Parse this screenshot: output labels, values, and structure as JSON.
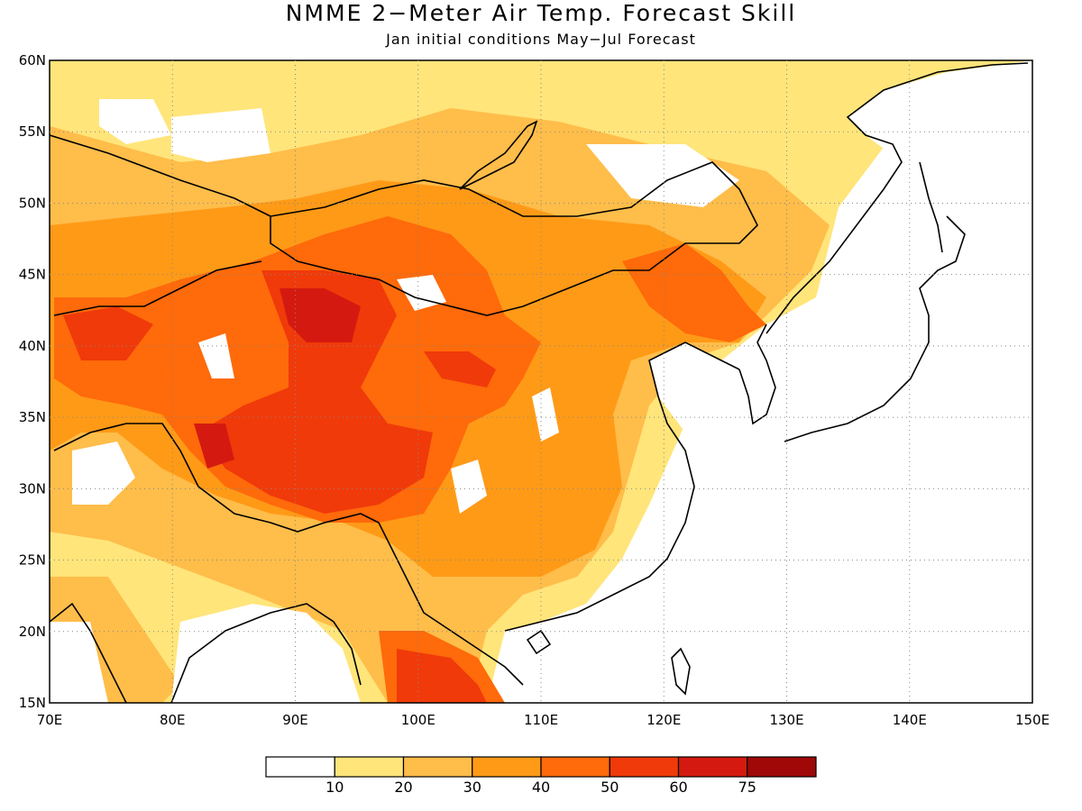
{
  "title": "NMME 2−Meter Air Temp. Forecast Skill",
  "subtitle": "Jan initial conditions  May−Jul Forecast",
  "axes": {
    "lon_range": [
      70,
      150
    ],
    "lat_range": [
      15,
      60
    ],
    "lon_ticks": [
      "70E",
      "80E",
      "90E",
      "100E",
      "110E",
      "120E",
      "130E",
      "140E",
      "150E"
    ],
    "lat_ticks": [
      "15N",
      "20N",
      "25N",
      "30N",
      "35N",
      "40N",
      "45N",
      "50N",
      "55N",
      "60N"
    ],
    "grid": "dotted"
  },
  "legend": {
    "labels": [
      "10",
      "20",
      "30",
      "40",
      "50",
      "60",
      "75"
    ],
    "colors": [
      "#ffffff",
      "#ffe57a",
      "#ffbd4a",
      "#ff9a17",
      "#ff6a0a",
      "#f03a0a",
      "#d41a10",
      "#a00808"
    ]
  },
  "map_fields": {
    "ocean_color": "#ffffff",
    "skill_regions": [
      {
        "level": 1,
        "desc": "broad low-skill field over land"
      },
      {
        "level": 2,
        "desc": "central Asia / Mongolia / China"
      },
      {
        "level": 3,
        "desc": "Tibet / northern China"
      },
      {
        "level": 4,
        "desc": "core"
      },
      {
        "level": 5,
        "desc": "peak"
      }
    ]
  }
}
